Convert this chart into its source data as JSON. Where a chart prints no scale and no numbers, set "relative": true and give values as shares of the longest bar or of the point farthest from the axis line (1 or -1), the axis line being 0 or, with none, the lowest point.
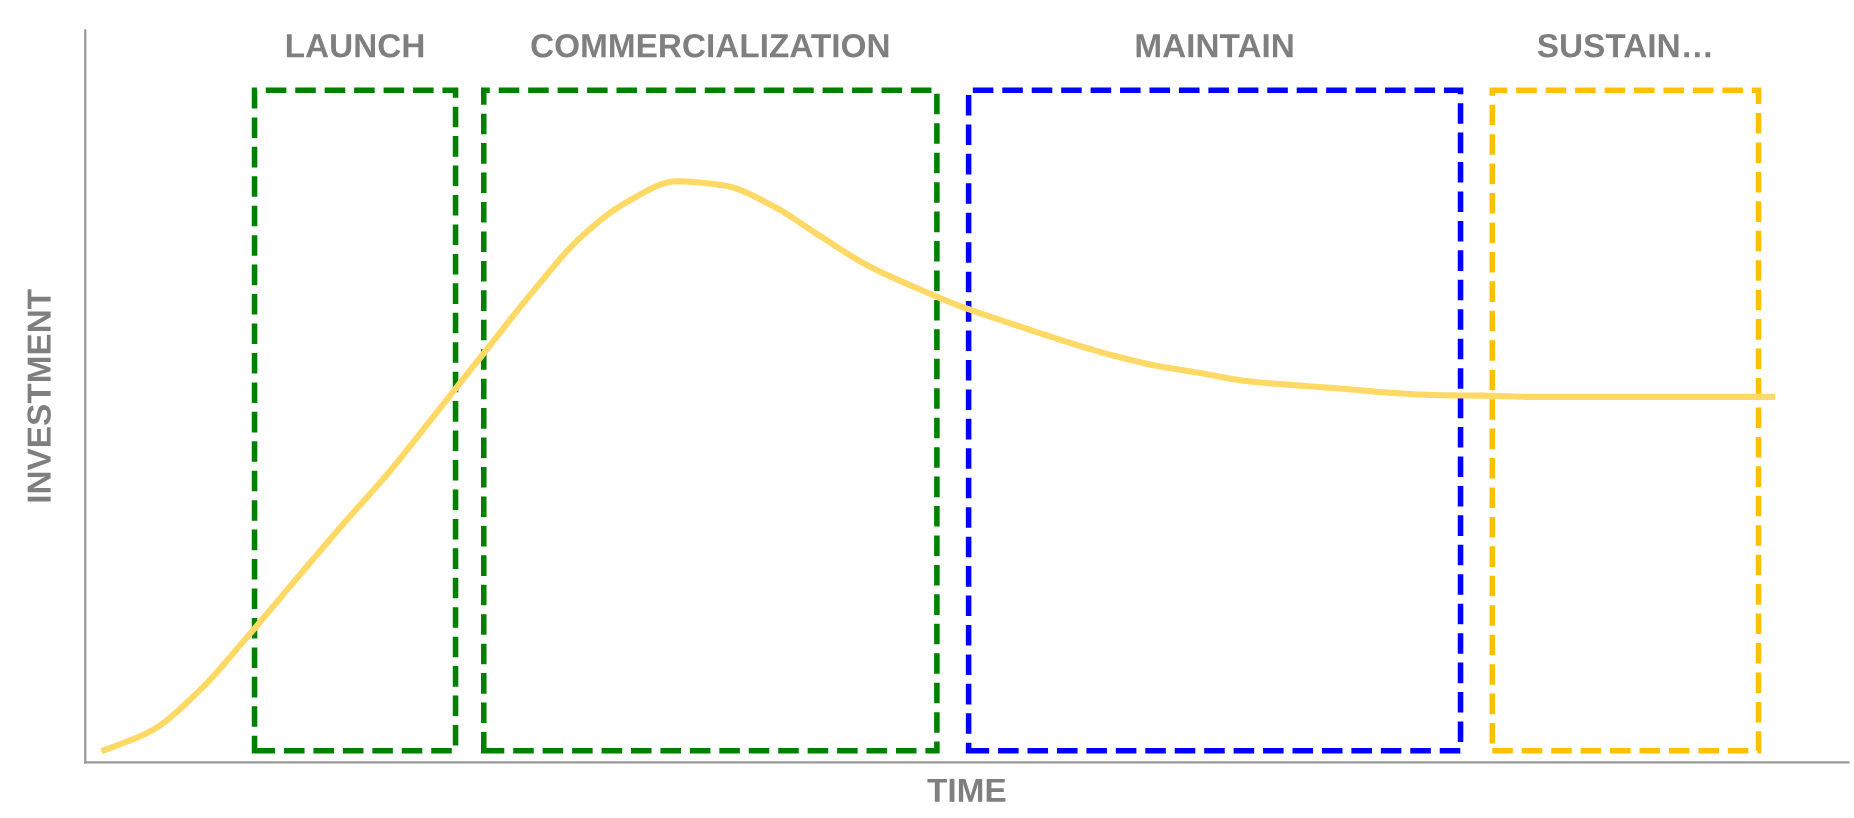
{
  "chart_data": {
    "type": "line",
    "relative": true,
    "xlabel": "TIME",
    "ylabel": "INVESTMENT",
    "categories": [
      null,
      null,
      null,
      null,
      null,
      null,
      null,
      null,
      null,
      null,
      null,
      null,
      null,
      null,
      null,
      null,
      null,
      null,
      null,
      null,
      null,
      null,
      null,
      null,
      null,
      null,
      null,
      null,
      null,
      null,
      null,
      null,
      null,
      null,
      null,
      null
    ],
    "series": [
      {
        "color": "#ffd966",
        "values": [
          0.021,
          0.055,
          0.124,
          0.216,
          0.313,
          0.409,
          0.502,
          0.605,
          0.708,
          0.811,
          0.904,
          0.966,
          1.0,
          0.993,
          0.959,
          0.907,
          0.856,
          0.818,
          0.784,
          0.756,
          0.729,
          0.704,
          0.684,
          0.67,
          0.656,
          0.649,
          0.643,
          0.636,
          0.632,
          0.631,
          0.629,
          0.629,
          0.629,
          0.629,
          0.629,
          0.629
        ]
      }
    ],
    "annotations": [
      "LAUNCH",
      "COMMERCIALIZATION",
      "MAINTAIN",
      "SUSTAIN…"
    ],
    "grid": false,
    "legend": false,
    "marker": "none",
    "line_style": "solid"
  }
}
